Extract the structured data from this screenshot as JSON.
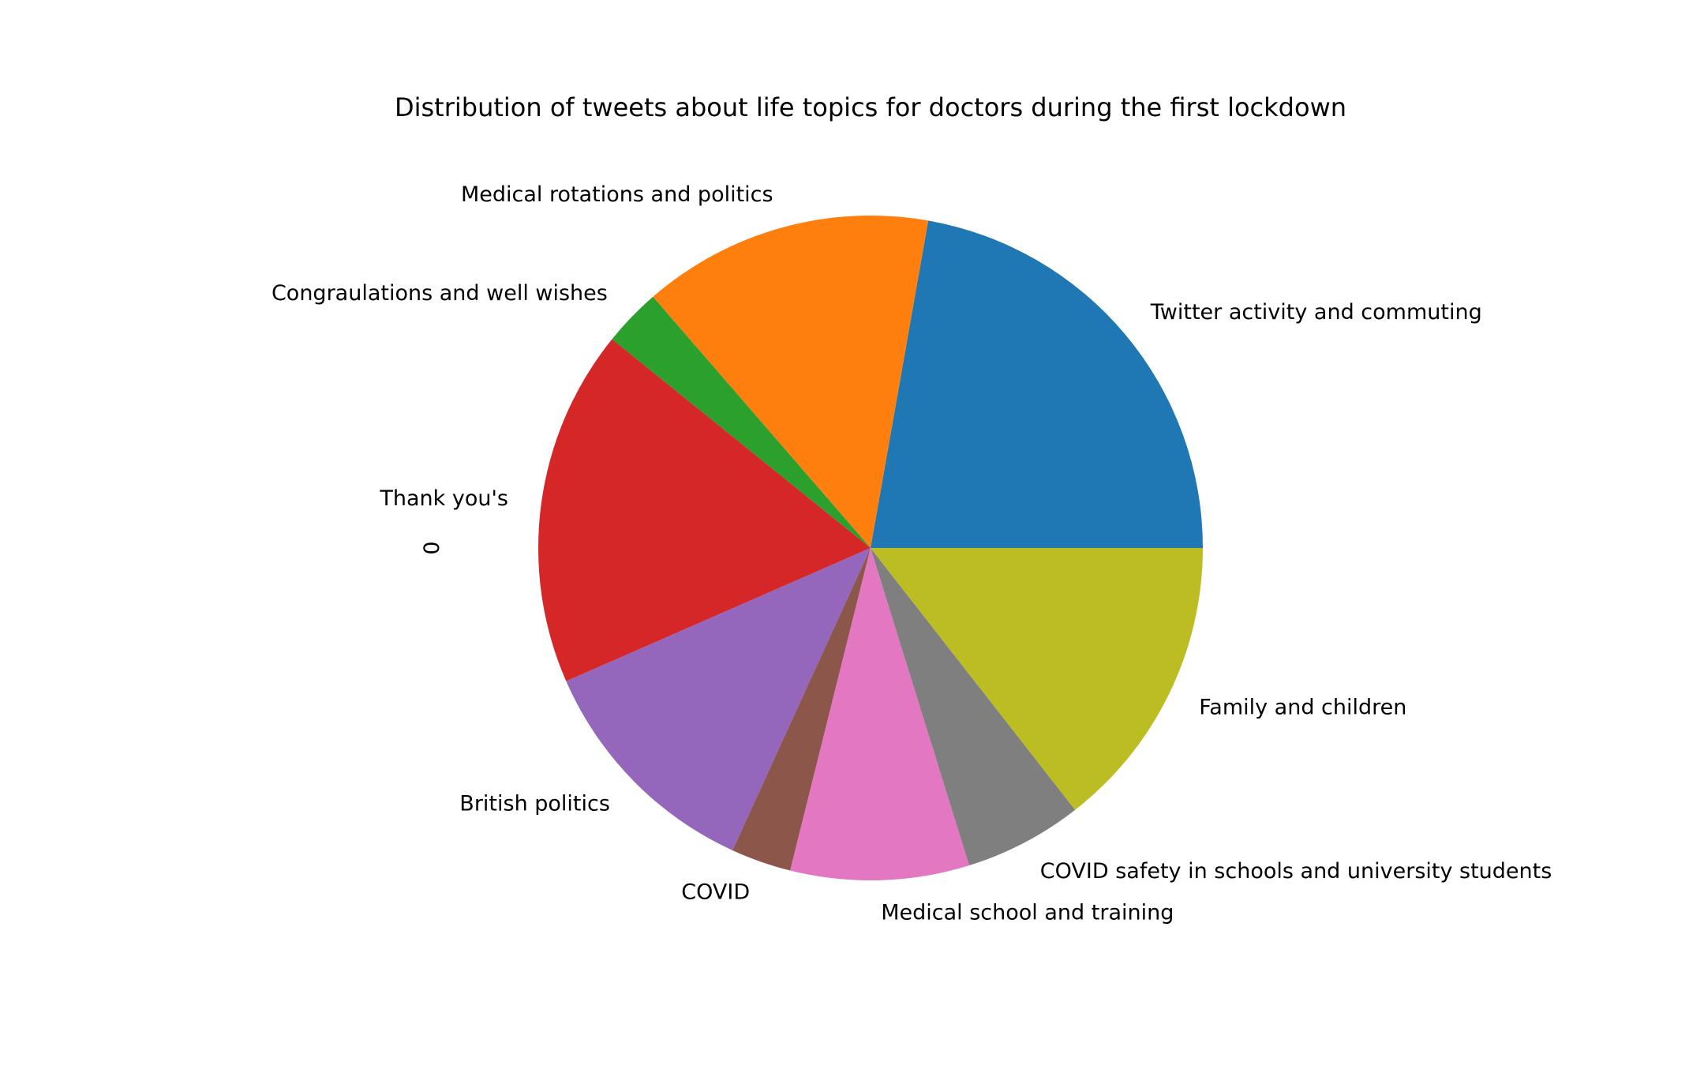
{
  "chart_data": {
    "type": "pie",
    "title": "Distribution of tweets about life topics for doctors during the first lockdown",
    "ylabel": "0",
    "start_angle_deg": 0,
    "direction": "counterclockwise",
    "slices": [
      {
        "label": "Twitter activity and commuting",
        "value": 22.0,
        "color": "#1f77b4"
      },
      {
        "label": "Medical rotations and politics",
        "value": 14.0,
        "color": "#ff7f0e"
      },
      {
        "label": "Congraulations and well wishes",
        "value": 2.8,
        "color": "#2ca02c"
      },
      {
        "label": "Thank you's",
        "value": 17.2,
        "color": "#d62728"
      },
      {
        "label": "British politics",
        "value": 11.5,
        "color": "#9467bd"
      },
      {
        "label": "COVID",
        "value": 2.9,
        "color": "#8c564b"
      },
      {
        "label": "Medical school and training",
        "value": 8.6,
        "color": "#e377c2"
      },
      {
        "label": "COVID safety in schools and university students",
        "value": 5.7,
        "color": "#7f7f7f"
      },
      {
        "label": "Family and children",
        "value": 14.3,
        "color": "#bcbd22"
      }
    ]
  }
}
